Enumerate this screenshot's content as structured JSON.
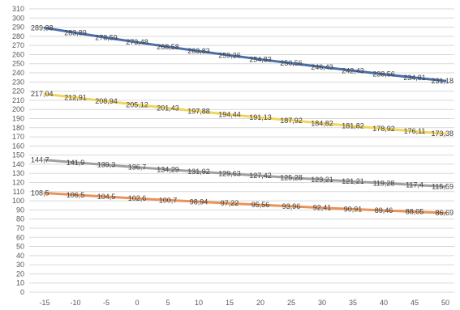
{
  "chart_data": {
    "type": "line",
    "title": "",
    "xlabel": "",
    "ylabel": "",
    "x": [
      -15,
      -10,
      -5,
      0,
      5,
      10,
      15,
      20,
      25,
      30,
      35,
      40,
      45,
      50
    ],
    "xticks": [
      "-15",
      "-10",
      "-5",
      "0",
      "5",
      "10",
      "15",
      "20",
      "25",
      "30",
      "35",
      "40",
      "45",
      "50"
    ],
    "ylim": [
      0,
      310
    ],
    "ystep": 10,
    "grid": true,
    "legend": "none",
    "series": [
      {
        "color": "#4a6ea9",
        "values": [
          289.38,
          283.89,
          278.59,
          273.48,
          268.58,
          263.83,
          259.26,
          254.83,
          250.56,
          246.43,
          242.43,
          238.56,
          234.81,
          231.18
        ],
        "labels": [
          "289,38",
          "283,89",
          "278,59",
          "273,48",
          "268,58",
          "263,83",
          "259,26",
          "254,83",
          "250,56",
          "246,43",
          "242,43",
          "238,56",
          "234,81",
          "231,18"
        ]
      },
      {
        "color": "#f2d45c",
        "values": [
          217.04,
          212.91,
          208.94,
          205.12,
          201.43,
          197.88,
          194.44,
          191.13,
          187.92,
          184.82,
          181.82,
          178.92,
          176.11,
          173.38
        ],
        "labels": [
          "217,04",
          "212,91",
          "208,94",
          "205,12",
          "201,43",
          "197,88",
          "194,44",
          "191,13",
          "187,92",
          "184,82",
          "181,82",
          "178,92",
          "176,11",
          "173,38"
        ]
      },
      {
        "color": "#a0a0a0",
        "values": [
          144.7,
          141.9,
          139.3,
          136.7,
          134.29,
          131.92,
          129.63,
          127.42,
          125.28,
          123.21,
          121.21,
          119.28,
          117.4,
          115.59
        ],
        "labels": [
          "144,7",
          "141,9",
          "139,3",
          "136,7",
          "134,29",
          "131,92",
          "129,63",
          "127,42",
          "125,28",
          "123,21",
          "121,21",
          "119,28",
          "117,4",
          "115,59"
        ]
      },
      {
        "color": "#e8935a",
        "values": [
          108.5,
          106.5,
          104.5,
          102.6,
          100.7,
          98.94,
          97.22,
          95.56,
          93.96,
          92.41,
          90.91,
          89.46,
          88.05,
          86.69
        ],
        "labels": [
          "108,5",
          "106,5",
          "104,5",
          "102,6",
          "100,7",
          "98,94",
          "97,22",
          "95,56",
          "93,96",
          "92,41",
          "90,91",
          "89,46",
          "88,05",
          "86,69"
        ]
      }
    ]
  }
}
